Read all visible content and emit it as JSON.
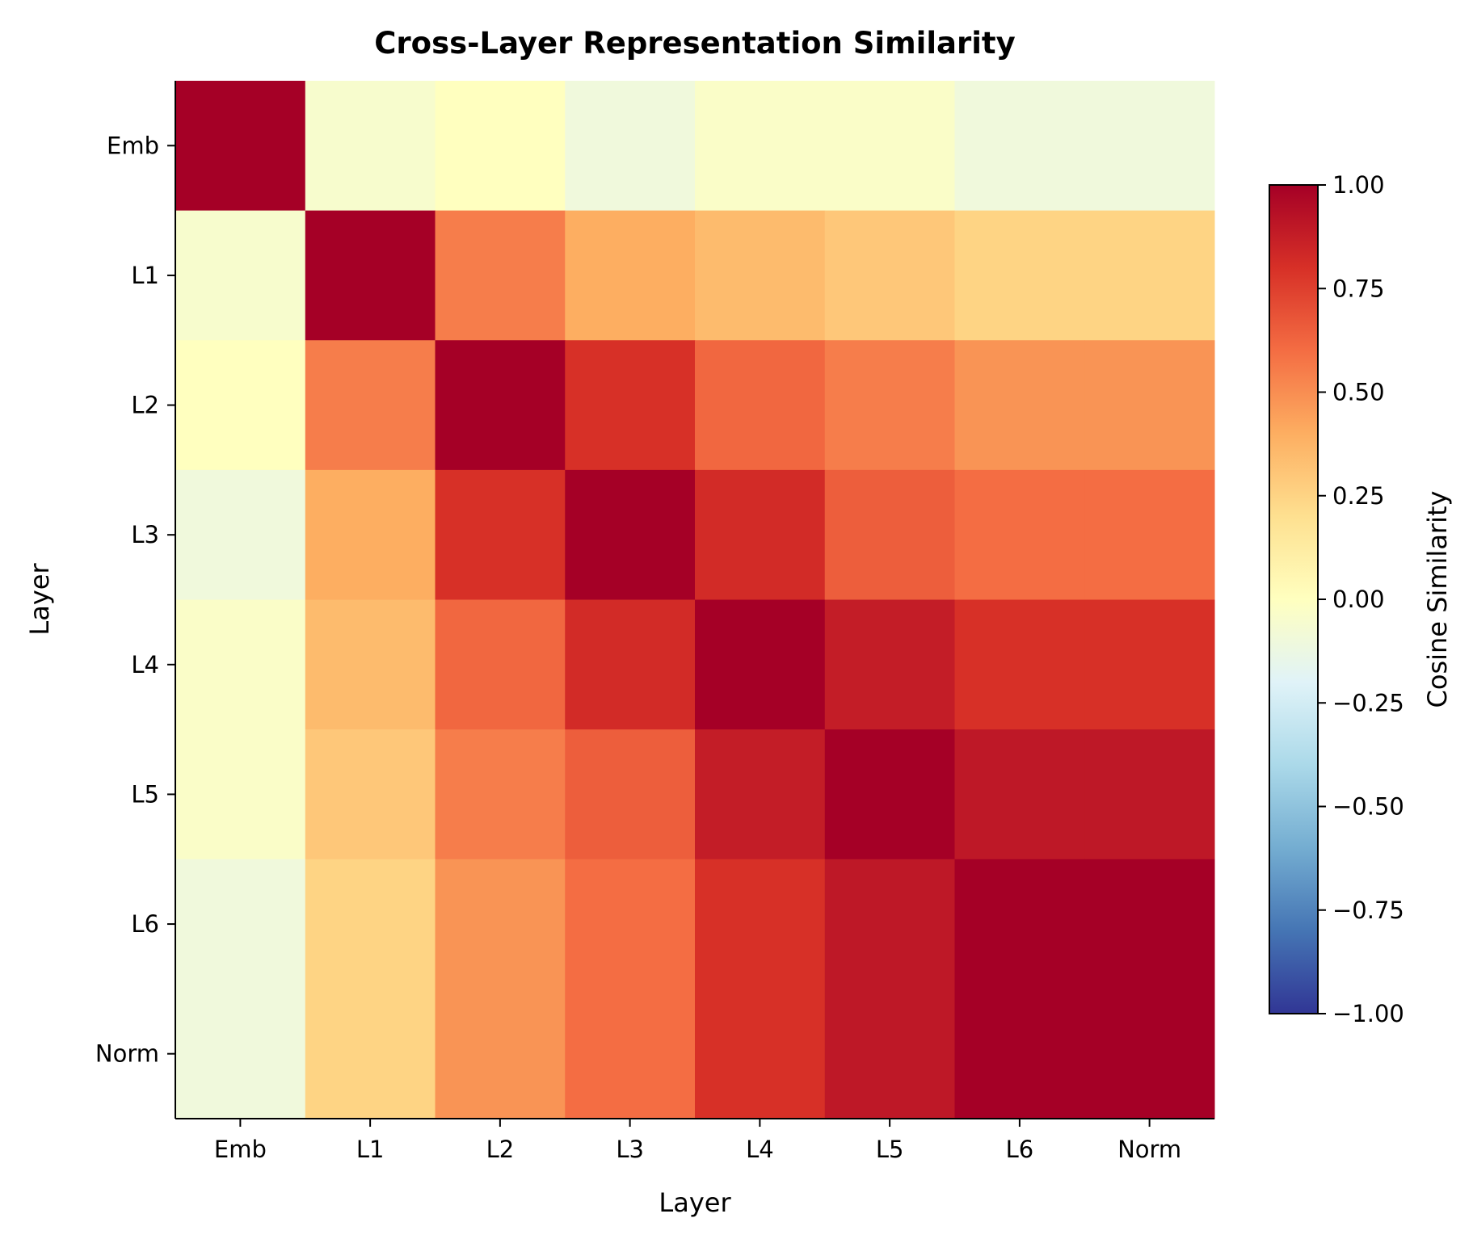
{
  "chart_data": {
    "type": "heatmap",
    "title": "Cross-Layer Representation Similarity",
    "xlabel": "Layer",
    "ylabel": "Layer",
    "x_categories": [
      "Emb",
      "L1",
      "L2",
      "L3",
      "L4",
      "L5",
      "L6",
      "Norm"
    ],
    "y_categories": [
      "Emb",
      "L1",
      "L2",
      "L3",
      "L4",
      "L5",
      "L6",
      "Norm"
    ],
    "values": [
      [
        1.0,
        -0.05,
        0.0,
        -0.1,
        -0.03,
        -0.03,
        -0.1,
        -0.1
      ],
      [
        -0.05,
        1.0,
        0.55,
        0.4,
        0.35,
        0.3,
        0.25,
        0.25
      ],
      [
        0.0,
        0.55,
        1.0,
        0.8,
        0.62,
        0.55,
        0.48,
        0.48
      ],
      [
        -0.1,
        0.4,
        0.8,
        1.0,
        0.82,
        0.65,
        0.6,
        0.6
      ],
      [
        -0.03,
        0.35,
        0.62,
        0.82,
        1.0,
        0.88,
        0.8,
        0.8
      ],
      [
        -0.03,
        0.3,
        0.55,
        0.65,
        0.88,
        1.0,
        0.9,
        0.9
      ],
      [
        -0.1,
        0.25,
        0.48,
        0.6,
        0.8,
        0.9,
        1.0,
        1.0
      ],
      [
        -0.1,
        0.25,
        0.48,
        0.6,
        0.8,
        0.9,
        1.0,
        1.0
      ]
    ],
    "colormap": "RdYlBu_r",
    "vmin": -1.0,
    "vmax": 1.0,
    "colorbar": {
      "label": "Cosine Similarity",
      "ticks": [
        1.0,
        0.75,
        0.5,
        0.25,
        0.0,
        -0.25,
        -0.5,
        -0.75,
        -1.0
      ],
      "tick_labels": [
        "1.00",
        "0.75",
        "0.50",
        "0.25",
        "0.00",
        "−0.25",
        "−0.50",
        "−0.75",
        "−1.00"
      ],
      "placement": "right"
    },
    "grid": false
  }
}
